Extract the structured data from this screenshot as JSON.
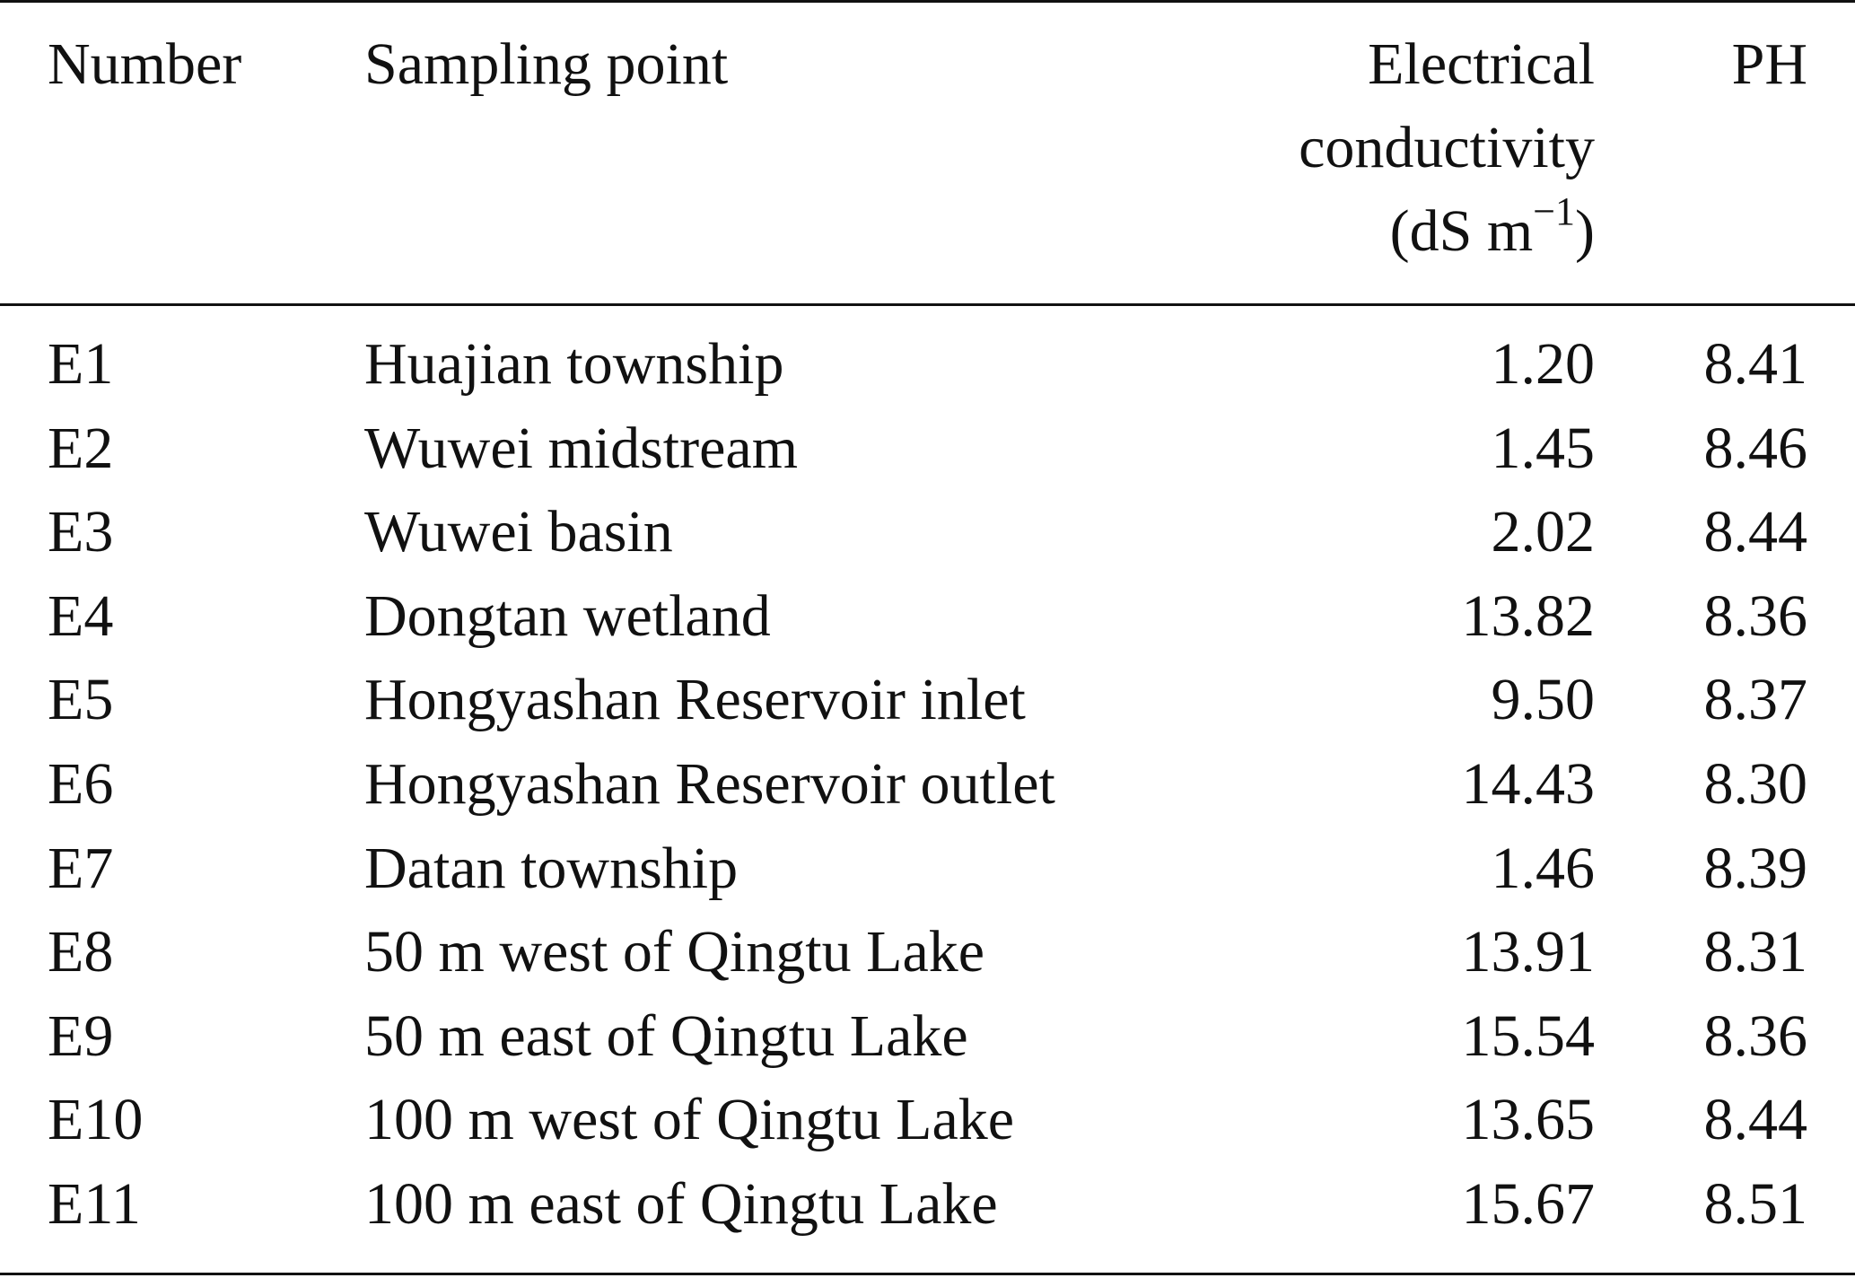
{
  "table": {
    "header": [
      {
        "lines": [
          "Number"
        ]
      },
      {
        "lines": [
          "Sampling point"
        ]
      },
      {
        "lines": [
          "Electrical",
          "conductivity"
        ],
        "unit": {
          "text": "(dS m",
          "superscript": "−1",
          "suffix": ")"
        }
      },
      {
        "lines": [
          "PH"
        ]
      }
    ],
    "rows": [
      [
        "E1",
        "Huajian township",
        "1.20",
        "8.41"
      ],
      [
        "E2",
        "Wuwei midstream",
        "1.45",
        "8.46"
      ],
      [
        "E3",
        "Wuwei basin",
        "2.02",
        "8.44"
      ],
      [
        "E4",
        "Dongtan wetland",
        "13.82",
        "8.36"
      ],
      [
        "E5",
        "Hongyashan Reservoir inlet",
        "9.50",
        "8.37"
      ],
      [
        "E6",
        "Hongyashan Reservoir outlet",
        "14.43",
        "8.30"
      ],
      [
        "E7",
        "Datan township",
        "1.46",
        "8.39"
      ],
      [
        "E8",
        "50 m west of Qingtu Lake",
        "13.91",
        "8.31"
      ],
      [
        "E9",
        "50 m east of Qingtu Lake",
        "15.54",
        "8.36"
      ],
      [
        "E10",
        "100 m west of Qingtu Lake",
        "13.65",
        "8.44"
      ],
      [
        "E11",
        "100 m east of Qingtu Lake",
        "15.67",
        "8.51"
      ]
    ]
  }
}
